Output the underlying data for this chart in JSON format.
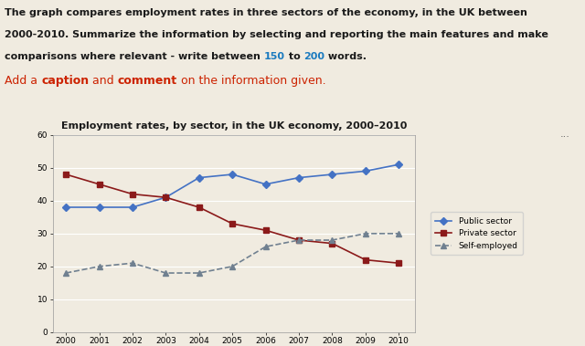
{
  "title": "Employment rates, by sector, in the UK economy, 2000–2010",
  "years": [
    2000,
    2001,
    2002,
    2003,
    2004,
    2005,
    2006,
    2007,
    2008,
    2009,
    2010
  ],
  "public_sector": [
    38,
    38,
    38,
    41,
    47,
    48,
    45,
    47,
    48,
    49,
    51
  ],
  "private_sector": [
    48,
    45,
    42,
    41,
    38,
    33,
    31,
    28,
    27,
    22,
    21
  ],
  "self_employed": [
    18,
    20,
    21,
    18,
    18,
    20,
    26,
    28,
    28,
    30,
    30
  ],
  "public_color": "#4472c4",
  "private_color": "#8B1A1A",
  "self_color": "#708090",
  "ylim": [
    0,
    60
  ],
  "yticks": [
    0,
    10,
    20,
    30,
    40,
    50,
    60
  ],
  "bg_color": "#f0ebe0",
  "text_color": "#1a1a1a",
  "blue_num_color": "#1a7abf",
  "red_caption_color": "#cc2200",
  "dots_color": "#555555",
  "header_fontsize": 8.0,
  "caption_fontsize": 9.0
}
